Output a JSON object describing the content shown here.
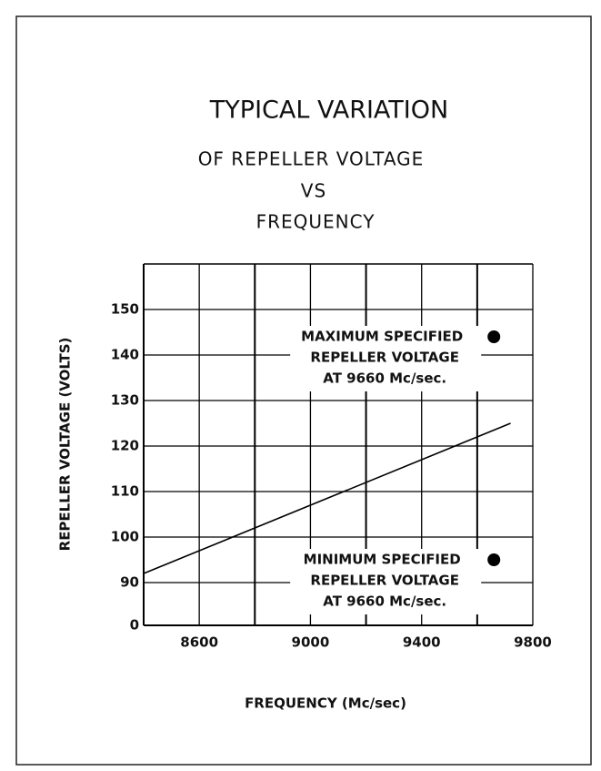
{
  "chart_data": {
    "type": "line",
    "title": "TYPICAL VARIATION",
    "subtitle": [
      "OF REPELLER VOLTAGE",
      "VS",
      "FREQUENCY"
    ],
    "x_label": "FREQUENCY (Mc/sec)",
    "y_label": "REPELLER VOLTAGE (VOLTS)",
    "x": [
      8400,
      9720
    ],
    "values": [
      92,
      125
    ],
    "color": "#000000",
    "xlim": [
      8400,
      9800
    ],
    "xticks": [
      8600,
      9000,
      9400,
      9800
    ],
    "xminor": [
      8800,
      9200,
      9600
    ],
    "ylim": [
      0,
      160
    ],
    "y_break": [
      0,
      90
    ],
    "yticks": [
      0,
      90,
      100,
      110,
      120,
      130,
      140,
      150
    ],
    "grid": true,
    "points": {
      "x": [
        9660,
        9660
      ],
      "values": [
        144,
        95
      ]
    },
    "annotations": [
      [
        "MAXIMUM SPECIFIED",
        "REPELLER VOLTAGE",
        "AT 9660 Mc/sec."
      ],
      [
        "MINIMUM SPECIFIED",
        "REPELLER VOLTAGE",
        "AT 9660 Mc/sec."
      ]
    ]
  }
}
